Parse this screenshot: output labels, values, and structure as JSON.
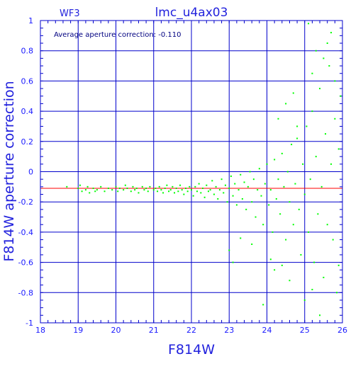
{
  "chart_data": {
    "type": "scatter",
    "title": "lmc_u4ax03",
    "chip_label": "WF3",
    "annotation": "Average aperture correction: -0.110",
    "xlabel": "F814W",
    "ylabel": "F814W aperture correction",
    "xlim": [
      18,
      26
    ],
    "ylim": [
      -1,
      1
    ],
    "x_ticks": [
      "18",
      "19",
      "20",
      "21",
      "22",
      "23",
      "24",
      "25",
      "26"
    ],
    "y_ticks": [
      "1",
      "0.8",
      "0.6",
      "0.4",
      "0.2",
      "0",
      "-0.2",
      "-0.4",
      "-0.6",
      "-0.8",
      "-1"
    ],
    "grid": true,
    "reference_line": {
      "y": -0.11,
      "color": "#ff0000"
    },
    "colors": {
      "axes": "#0000cc",
      "grid": "#0000cc",
      "points": "#00ff00",
      "text": "#2222dd"
    },
    "series": [
      {
        "points": [
          [
            18.7,
            -0.1
          ],
          [
            19.0,
            -0.11
          ],
          [
            19.05,
            -0.09
          ],
          [
            19.1,
            -0.13
          ],
          [
            19.2,
            -0.12
          ],
          [
            19.25,
            -0.1
          ],
          [
            19.3,
            -0.14
          ],
          [
            19.4,
            -0.11
          ],
          [
            19.45,
            -0.13
          ],
          [
            19.5,
            -0.12
          ],
          [
            19.6,
            -0.1
          ],
          [
            19.7,
            -0.13
          ],
          [
            19.8,
            -0.11
          ],
          [
            19.9,
            -0.12
          ],
          [
            20.0,
            -0.1
          ],
          [
            20.05,
            -0.13
          ],
          [
            20.1,
            -0.11
          ],
          [
            20.2,
            -0.12
          ],
          [
            20.25,
            -0.09
          ],
          [
            20.3,
            -0.11
          ],
          [
            20.4,
            -0.13
          ],
          [
            20.45,
            -0.1
          ],
          [
            20.5,
            -0.12
          ],
          [
            20.55,
            -0.11
          ],
          [
            20.6,
            -0.14
          ],
          [
            20.7,
            -0.1
          ],
          [
            20.75,
            -0.12
          ],
          [
            20.8,
            -0.11
          ],
          [
            20.85,
            -0.13
          ],
          [
            20.9,
            -0.1
          ],
          [
            21.0,
            -0.12
          ],
          [
            21.05,
            -0.11
          ],
          [
            21.1,
            -0.13
          ],
          [
            21.15,
            -0.1
          ],
          [
            21.2,
            -0.12
          ],
          [
            21.25,
            -0.14
          ],
          [
            21.3,
            -0.11
          ],
          [
            21.35,
            -0.09
          ],
          [
            21.4,
            -0.13
          ],
          [
            21.45,
            -0.12
          ],
          [
            21.5,
            -0.1
          ],
          [
            21.55,
            -0.14
          ],
          [
            21.6,
            -0.11
          ],
          [
            21.65,
            -0.13
          ],
          [
            21.7,
            -0.09
          ],
          [
            21.75,
            -0.12
          ],
          [
            21.8,
            -0.15
          ],
          [
            21.85,
            -0.11
          ],
          [
            21.9,
            -0.13
          ],
          [
            21.95,
            -0.1
          ],
          [
            22.0,
            -0.12
          ],
          [
            22.05,
            -0.16
          ],
          [
            22.1,
            -0.1
          ],
          [
            22.15,
            -0.13
          ],
          [
            22.2,
            -0.08
          ],
          [
            22.25,
            -0.14
          ],
          [
            22.3,
            -0.11
          ],
          [
            22.35,
            -0.17
          ],
          [
            22.4,
            -0.09
          ],
          [
            22.45,
            -0.13
          ],
          [
            22.5,
            -0.12
          ],
          [
            22.55,
            -0.06
          ],
          [
            22.6,
            -0.15
          ],
          [
            22.65,
            -0.1
          ],
          [
            22.7,
            -0.18
          ],
          [
            22.75,
            -0.12
          ],
          [
            22.8,
            -0.05
          ],
          [
            22.85,
            -0.14
          ],
          [
            22.9,
            -0.09
          ],
          [
            22.95,
            -0.2
          ],
          [
            23.0,
            -0.11
          ],
          [
            23.05,
            -0.03
          ],
          [
            23.1,
            -0.16
          ],
          [
            23.15,
            -0.08
          ],
          [
            23.2,
            -0.22
          ],
          [
            23.25,
            -0.12
          ],
          [
            23.3,
            -0.02
          ],
          [
            23.35,
            -0.18
          ],
          [
            23.4,
            -0.07
          ],
          [
            23.45,
            -0.25
          ],
          [
            23.5,
            -0.1
          ],
          [
            23.55,
            0.0
          ],
          [
            23.6,
            -0.2
          ],
          [
            23.65,
            -0.05
          ],
          [
            23.7,
            -0.3
          ],
          [
            23.75,
            -0.12
          ],
          [
            23.8,
            0.02
          ],
          [
            23.85,
            -0.16
          ],
          [
            23.9,
            -0.35
          ],
          [
            23.95,
            -0.08
          ],
          [
            24.0,
            0.05
          ],
          [
            24.05,
            -0.22
          ],
          [
            24.1,
            -0.12
          ],
          [
            24.15,
            -0.4
          ],
          [
            24.2,
            0.08
          ],
          [
            24.25,
            -0.18
          ],
          [
            24.3,
            -0.05
          ],
          [
            24.35,
            -0.28
          ],
          [
            24.4,
            0.12
          ],
          [
            24.45,
            -0.1
          ],
          [
            24.5,
            -0.45
          ],
          [
            24.55,
            0.0
          ],
          [
            24.6,
            -0.2
          ],
          [
            24.65,
            0.18
          ],
          [
            24.7,
            -0.35
          ],
          [
            24.75,
            -0.08
          ],
          [
            24.8,
            0.22
          ],
          [
            24.85,
            -0.25
          ],
          [
            24.9,
            -0.55
          ],
          [
            24.95,
            0.05
          ],
          [
            25.0,
            -0.15
          ],
          [
            25.05,
            0.3
          ],
          [
            25.1,
            -0.4
          ],
          [
            25.15,
            -0.05
          ],
          [
            25.2,
            0.4
          ],
          [
            25.25,
            -0.6
          ],
          [
            25.3,
            0.1
          ],
          [
            25.35,
            -0.28
          ],
          [
            25.4,
            0.55
          ],
          [
            25.45,
            -0.1
          ],
          [
            25.5,
            -0.7
          ],
          [
            25.55,
            0.25
          ],
          [
            25.6,
            -0.35
          ],
          [
            25.65,
            0.7
          ],
          [
            25.7,
            0.05
          ],
          [
            25.75,
            -0.45
          ],
          [
            25.8,
            0.35
          ],
          [
            25.85,
            -0.8
          ],
          [
            25.9,
            0.15
          ],
          [
            25.95,
            0.5
          ],
          [
            23.0,
            -0.52
          ],
          [
            23.1,
            -0.6
          ],
          [
            23.3,
            -0.44
          ],
          [
            23.6,
            -0.48
          ],
          [
            23.9,
            -0.88
          ],
          [
            24.2,
            -0.65
          ],
          [
            24.4,
            -0.62
          ],
          [
            24.6,
            -0.72
          ],
          [
            24.1,
            -0.58
          ],
          [
            24.3,
            0.35
          ],
          [
            24.5,
            0.45
          ],
          [
            24.7,
            0.52
          ],
          [
            25.0,
            -0.85
          ],
          [
            25.2,
            -0.78
          ],
          [
            25.4,
            -0.95
          ],
          [
            25.6,
            0.85
          ],
          [
            25.8,
            0.6
          ],
          [
            25.3,
            0.8
          ],
          [
            25.1,
            0.98
          ],
          [
            25.7,
            0.92
          ],
          [
            25.5,
            0.75
          ],
          [
            25.9,
            -0.62
          ],
          [
            25.2,
            0.65
          ],
          [
            24.8,
            0.3
          ]
        ]
      }
    ]
  }
}
